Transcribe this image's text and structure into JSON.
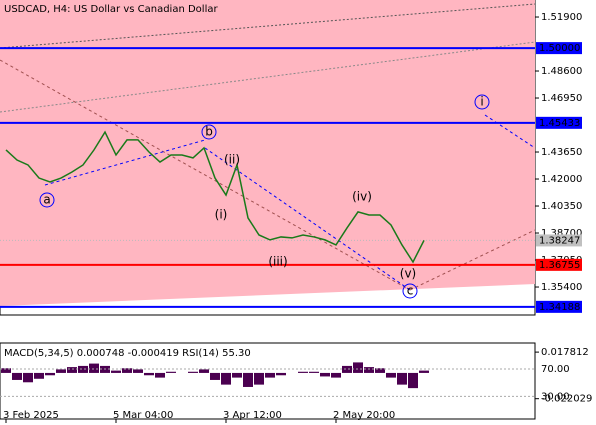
{
  "chart_data": {
    "type": "line",
    "title": "USDCAD, H4:  US Dollar vs Canadian Dollar",
    "categories": [
      null,
      null,
      "3 Feb 2025",
      null,
      null,
      null,
      null,
      null,
      null,
      null,
      null,
      null,
      "5 Mar 04:00",
      null,
      null,
      null,
      null,
      null,
      null,
      null,
      null,
      null,
      "3 Apr 12:00",
      null,
      null,
      null,
      null,
      null,
      null,
      null,
      null,
      null,
      "2 May 20:00",
      null,
      null,
      null,
      null,
      null,
      null
    ],
    "series": [
      {
        "name": "USDCAD",
        "color": "#1a7a1a",
        "values": [
          1.4378,
          1.4316,
          1.4286,
          1.4206,
          1.4182,
          1.4206,
          1.4243,
          1.4286,
          1.4378,
          1.4487,
          1.4347,
          1.4439,
          1.4439,
          1.4365,
          1.4304,
          1.4347,
          1.4347,
          1.4329,
          1.439,
          1.4206,
          1.4102,
          1.4286,
          1.3962,
          1.3858,
          1.3828,
          1.3846,
          1.384,
          1.3858,
          1.3846,
          1.3828,
          1.3797,
          1.3901,
          1.3999,
          1.398,
          1.398,
          1.3919,
          1.3797,
          1.3693,
          1.3825
        ]
      }
    ],
    "ylim": [
      1.3369,
      1.5294
    ],
    "yticks": [
      {
        "value": 1.519,
        "label": "1.51900"
      },
      {
        "value": 1.486,
        "label": "1.48600"
      },
      {
        "value": 1.4695,
        "label": "1.46950"
      },
      {
        "value": 1.4365,
        "label": "1.43650"
      },
      {
        "value": 1.42,
        "label": "1.42000"
      },
      {
        "value": 1.4035,
        "label": "1.40350"
      },
      {
        "value": 1.387,
        "label": "1.38700"
      },
      {
        "value": 1.3705,
        "label": "1.37050"
      },
      {
        "value": 1.354,
        "label": "1.35400"
      }
    ],
    "levels": [
      {
        "value": 1.5,
        "label": "1.50000",
        "color": "#0000ff"
      },
      {
        "value": 1.45433,
        "label": "1.45433",
        "color": "#0000ff"
      },
      {
        "value": 1.36755,
        "label": "1.36755",
        "color": "#ff0000"
      },
      {
        "value": 1.34188,
        "label": "1.34188",
        "color": "#0000ff"
      }
    ],
    "current_price": {
      "value": 1.38247,
      "label": "1.38247"
    },
    "annotations": [
      "a",
      "b",
      "(i)",
      "(ii)",
      "(iii)",
      "(iv)",
      "(v)",
      "c",
      "i"
    ],
    "indicator": {
      "title": "MACD(5,34,5) 0.000748 -0.000419 RSI(14) 55.30",
      "color": "#4b0050",
      "values": [
        0.004,
        -0.006,
        -0.008,
        -0.005,
        -0.002,
        0.003,
        0.005,
        0.006,
        0.008,
        0.006,
        0.002,
        0.004,
        0.003,
        -0.002,
        -0.004,
        0.001,
        0.0,
        0.001,
        0.003,
        -0.006,
        -0.01,
        -0.004,
        -0.012,
        -0.01,
        -0.004,
        -0.002,
        0.0,
        0.001,
        0.001,
        -0.003,
        -0.004,
        0.006,
        0.009,
        0.005,
        0.004,
        -0.004,
        -0.01,
        -0.013,
        0.002
      ],
      "ylim": [
        -0.0394,
        0.0256
      ],
      "yticks": [
        0.017812,
        -0.022029
      ],
      "y2ticks": [
        {
          "value": 70,
          "label": "70.00"
        },
        {
          "value": 30,
          "label": "30.00"
        }
      ],
      "y2lim": [
        -3,
        108
      ]
    }
  }
}
